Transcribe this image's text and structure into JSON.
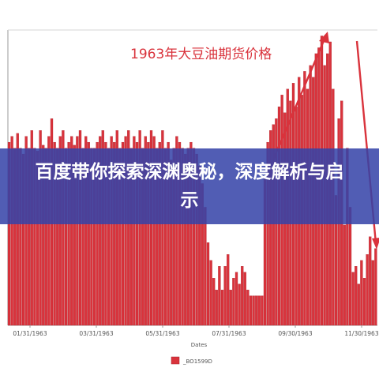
{
  "overlay": {
    "headline": "百度带你探索深渊奥秘，深度解析与启示"
  },
  "colors": {
    "bar": "#d9333c",
    "bar_dark": "#a8242b",
    "annotation": "#d9333c",
    "banner": "#3442a8",
    "axis": "#9a9a9a"
  },
  "chart_data": {
    "type": "bar",
    "title": "1963年大豆油期货价格",
    "xlabel": "Dates",
    "ylabel": "",
    "legend": {
      "entries": [
        "_BO1599D"
      ],
      "placement": "bottom-center"
    },
    "x_tick_labels": [
      "01/31/1963",
      "03/31/1963",
      "05/31/1963",
      "07/31/1963",
      "09/30/1963",
      "11/30/1963"
    ],
    "ylim": [
      0,
      100
    ],
    "grid": false,
    "series": [
      {
        "name": "_BO1599D",
        "values": [
          62,
          64,
          60,
          65,
          60,
          58,
          64,
          60,
          66,
          60,
          59,
          66,
          61,
          60,
          64,
          70,
          62,
          60,
          64,
          66,
          60,
          62,
          64,
          61,
          64,
          66,
          60,
          64,
          62,
          60,
          60,
          62,
          64,
          66,
          62,
          60,
          64,
          62,
          66,
          60,
          62,
          64,
          66,
          60,
          64,
          62,
          66,
          60,
          64,
          62,
          66,
          64,
          60,
          62,
          66,
          60,
          62,
          56,
          60,
          64,
          62,
          60,
          58,
          60,
          62,
          60,
          58,
          54,
          48,
          40,
          28,
          22,
          16,
          12,
          20,
          12,
          20,
          24,
          12,
          16,
          18,
          14,
          20,
          18,
          12,
          10,
          10,
          10,
          10,
          10,
          50,
          62,
          66,
          68,
          70,
          74,
          78,
          72,
          80,
          76,
          82,
          74,
          84,
          78,
          86,
          80,
          88,
          84,
          92,
          94,
          98,
          88,
          92,
          96,
          80,
          44,
          70,
          76,
          34,
          60,
          40,
          18,
          20,
          14,
          22,
          16,
          24,
          30,
          22,
          26
        ]
      }
    ],
    "annotations": [
      {
        "type": "arrow",
        "from": "bars-mid-late-rally",
        "to": "peak",
        "color": "#d9333c"
      },
      {
        "type": "arrow",
        "from": "peak",
        "to": "end-decline",
        "color": "#d9333c"
      }
    ]
  }
}
